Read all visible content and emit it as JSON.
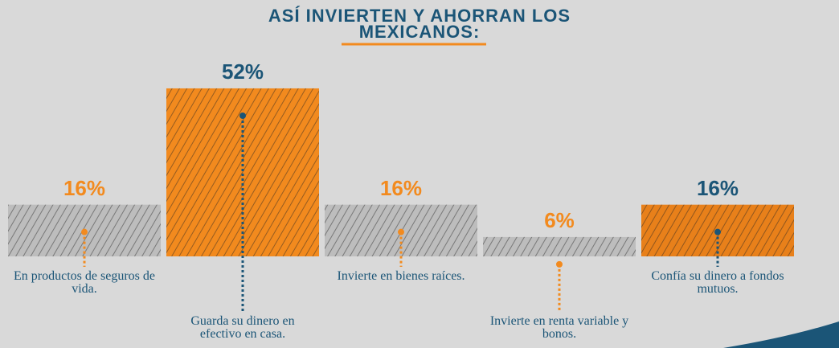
{
  "chart_data": {
    "type": "bar",
    "title": "ASÍ INVIERTEN Y AHORRAN LOS MEXICANOS:",
    "categories": [
      "En productos de seguros de vida.",
      "Guarda su dinero en efectivo en casa.",
      "Invierte en bienes raíces.",
      "Invierte en renta variable y bonos.",
      "Confía su dinero a fondos mutuos."
    ],
    "values": [
      16,
      52,
      16,
      6,
      16
    ],
    "value_labels": [
      "16%",
      "52%",
      "16%",
      "6%",
      "16%"
    ],
    "colors": [
      "#bdbdbd",
      "#f28a1e",
      "#bdbdbd",
      "#bdbdbd",
      "#e8801a"
    ],
    "label_colors": [
      "#f28a1e",
      "#1b5577",
      "#f28a1e",
      "#f28a1e",
      "#1b5577"
    ]
  }
}
